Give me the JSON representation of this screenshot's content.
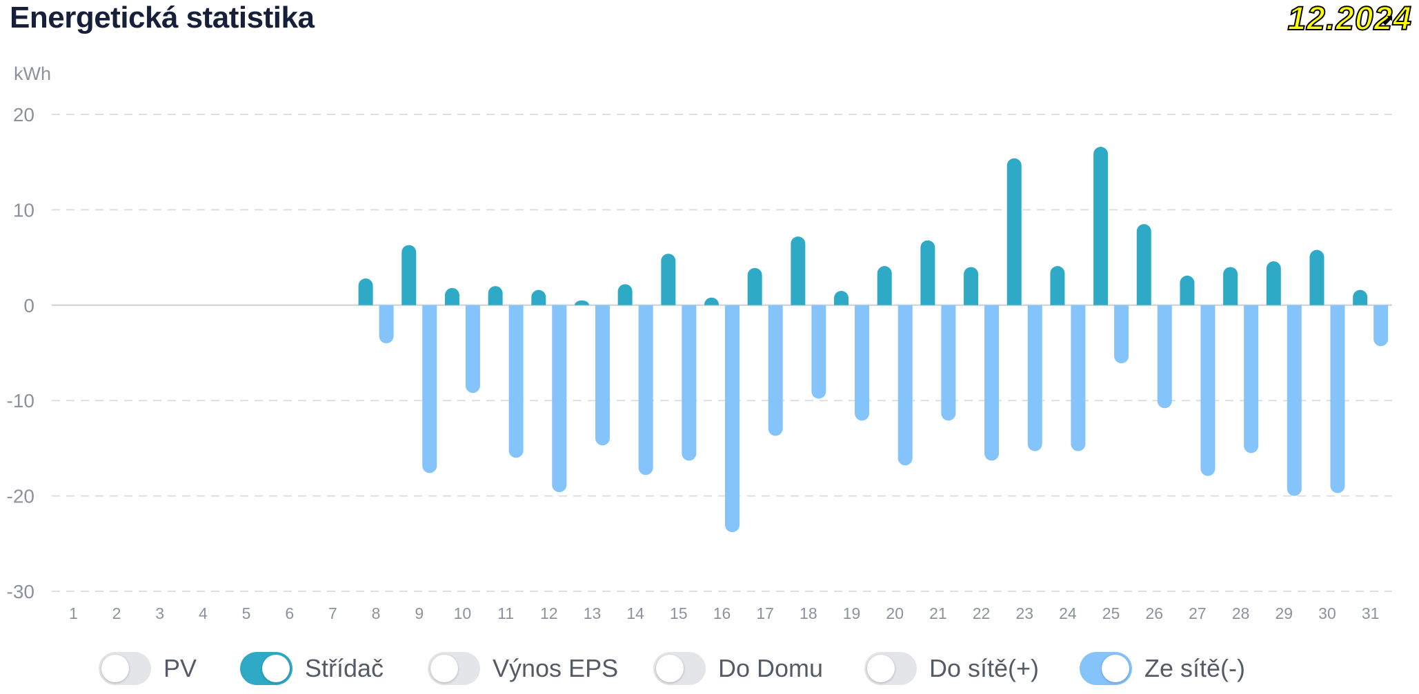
{
  "header": {
    "title": "Energetická statistika",
    "date": "12.2024"
  },
  "chart_data": {
    "type": "bar",
    "title": "",
    "xlabel": "",
    "ylabel": "kWh",
    "ylim": [
      -30,
      20
    ],
    "yticks": [
      20,
      10,
      0,
      -10,
      -20,
      -30
    ],
    "grid": true,
    "legend_position": "bottom",
    "categories": [
      "1",
      "2",
      "3",
      "4",
      "5",
      "6",
      "7",
      "8",
      "9",
      "10",
      "11",
      "12",
      "13",
      "14",
      "15",
      "16",
      "17",
      "18",
      "19",
      "20",
      "21",
      "22",
      "23",
      "24",
      "25",
      "26",
      "27",
      "28",
      "29",
      "30",
      "31"
    ],
    "series": [
      {
        "name": "Střídač",
        "color": "#2eaac6",
        "values": [
          0,
          0,
          0,
          0,
          0,
          0,
          0,
          2.8,
          6.3,
          1.8,
          2.0,
          1.6,
          0.5,
          2.2,
          5.4,
          0.8,
          3.9,
          7.2,
          1.5,
          4.1,
          6.8,
          4.0,
          15.4,
          4.1,
          16.6,
          8.5,
          3.1,
          4.0,
          4.6,
          5.8,
          1.6
        ]
      },
      {
        "name": "Ze sítě(-)",
        "color": "#85c3fb",
        "values": [
          0,
          0,
          0,
          0,
          0,
          0,
          0,
          -4.0,
          -17.6,
          -9.2,
          -16.0,
          -19.6,
          -14.7,
          -17.8,
          -16.3,
          -23.8,
          -13.7,
          -9.8,
          -12.1,
          -16.8,
          -12.1,
          -16.3,
          -15.3,
          -15.3,
          -6.1,
          -10.8,
          -17.9,
          -15.5,
          -20.0,
          -19.7,
          -4.3
        ]
      }
    ]
  },
  "legend": [
    {
      "label": "PV",
      "on": false,
      "color": "#e3e5e9"
    },
    {
      "label": "Střídač",
      "on": true,
      "color": "#2eaac6"
    },
    {
      "label": "Výnos EPS",
      "on": false,
      "color": "#e3e5e9"
    },
    {
      "label": "Do Domu",
      "on": false,
      "color": "#e3e5e9"
    },
    {
      "label": "Do sítě(+)",
      "on": false,
      "color": "#e3e5e9"
    },
    {
      "label": "Ze sítě(-)",
      "on": true,
      "color": "#85c3fb"
    }
  ]
}
